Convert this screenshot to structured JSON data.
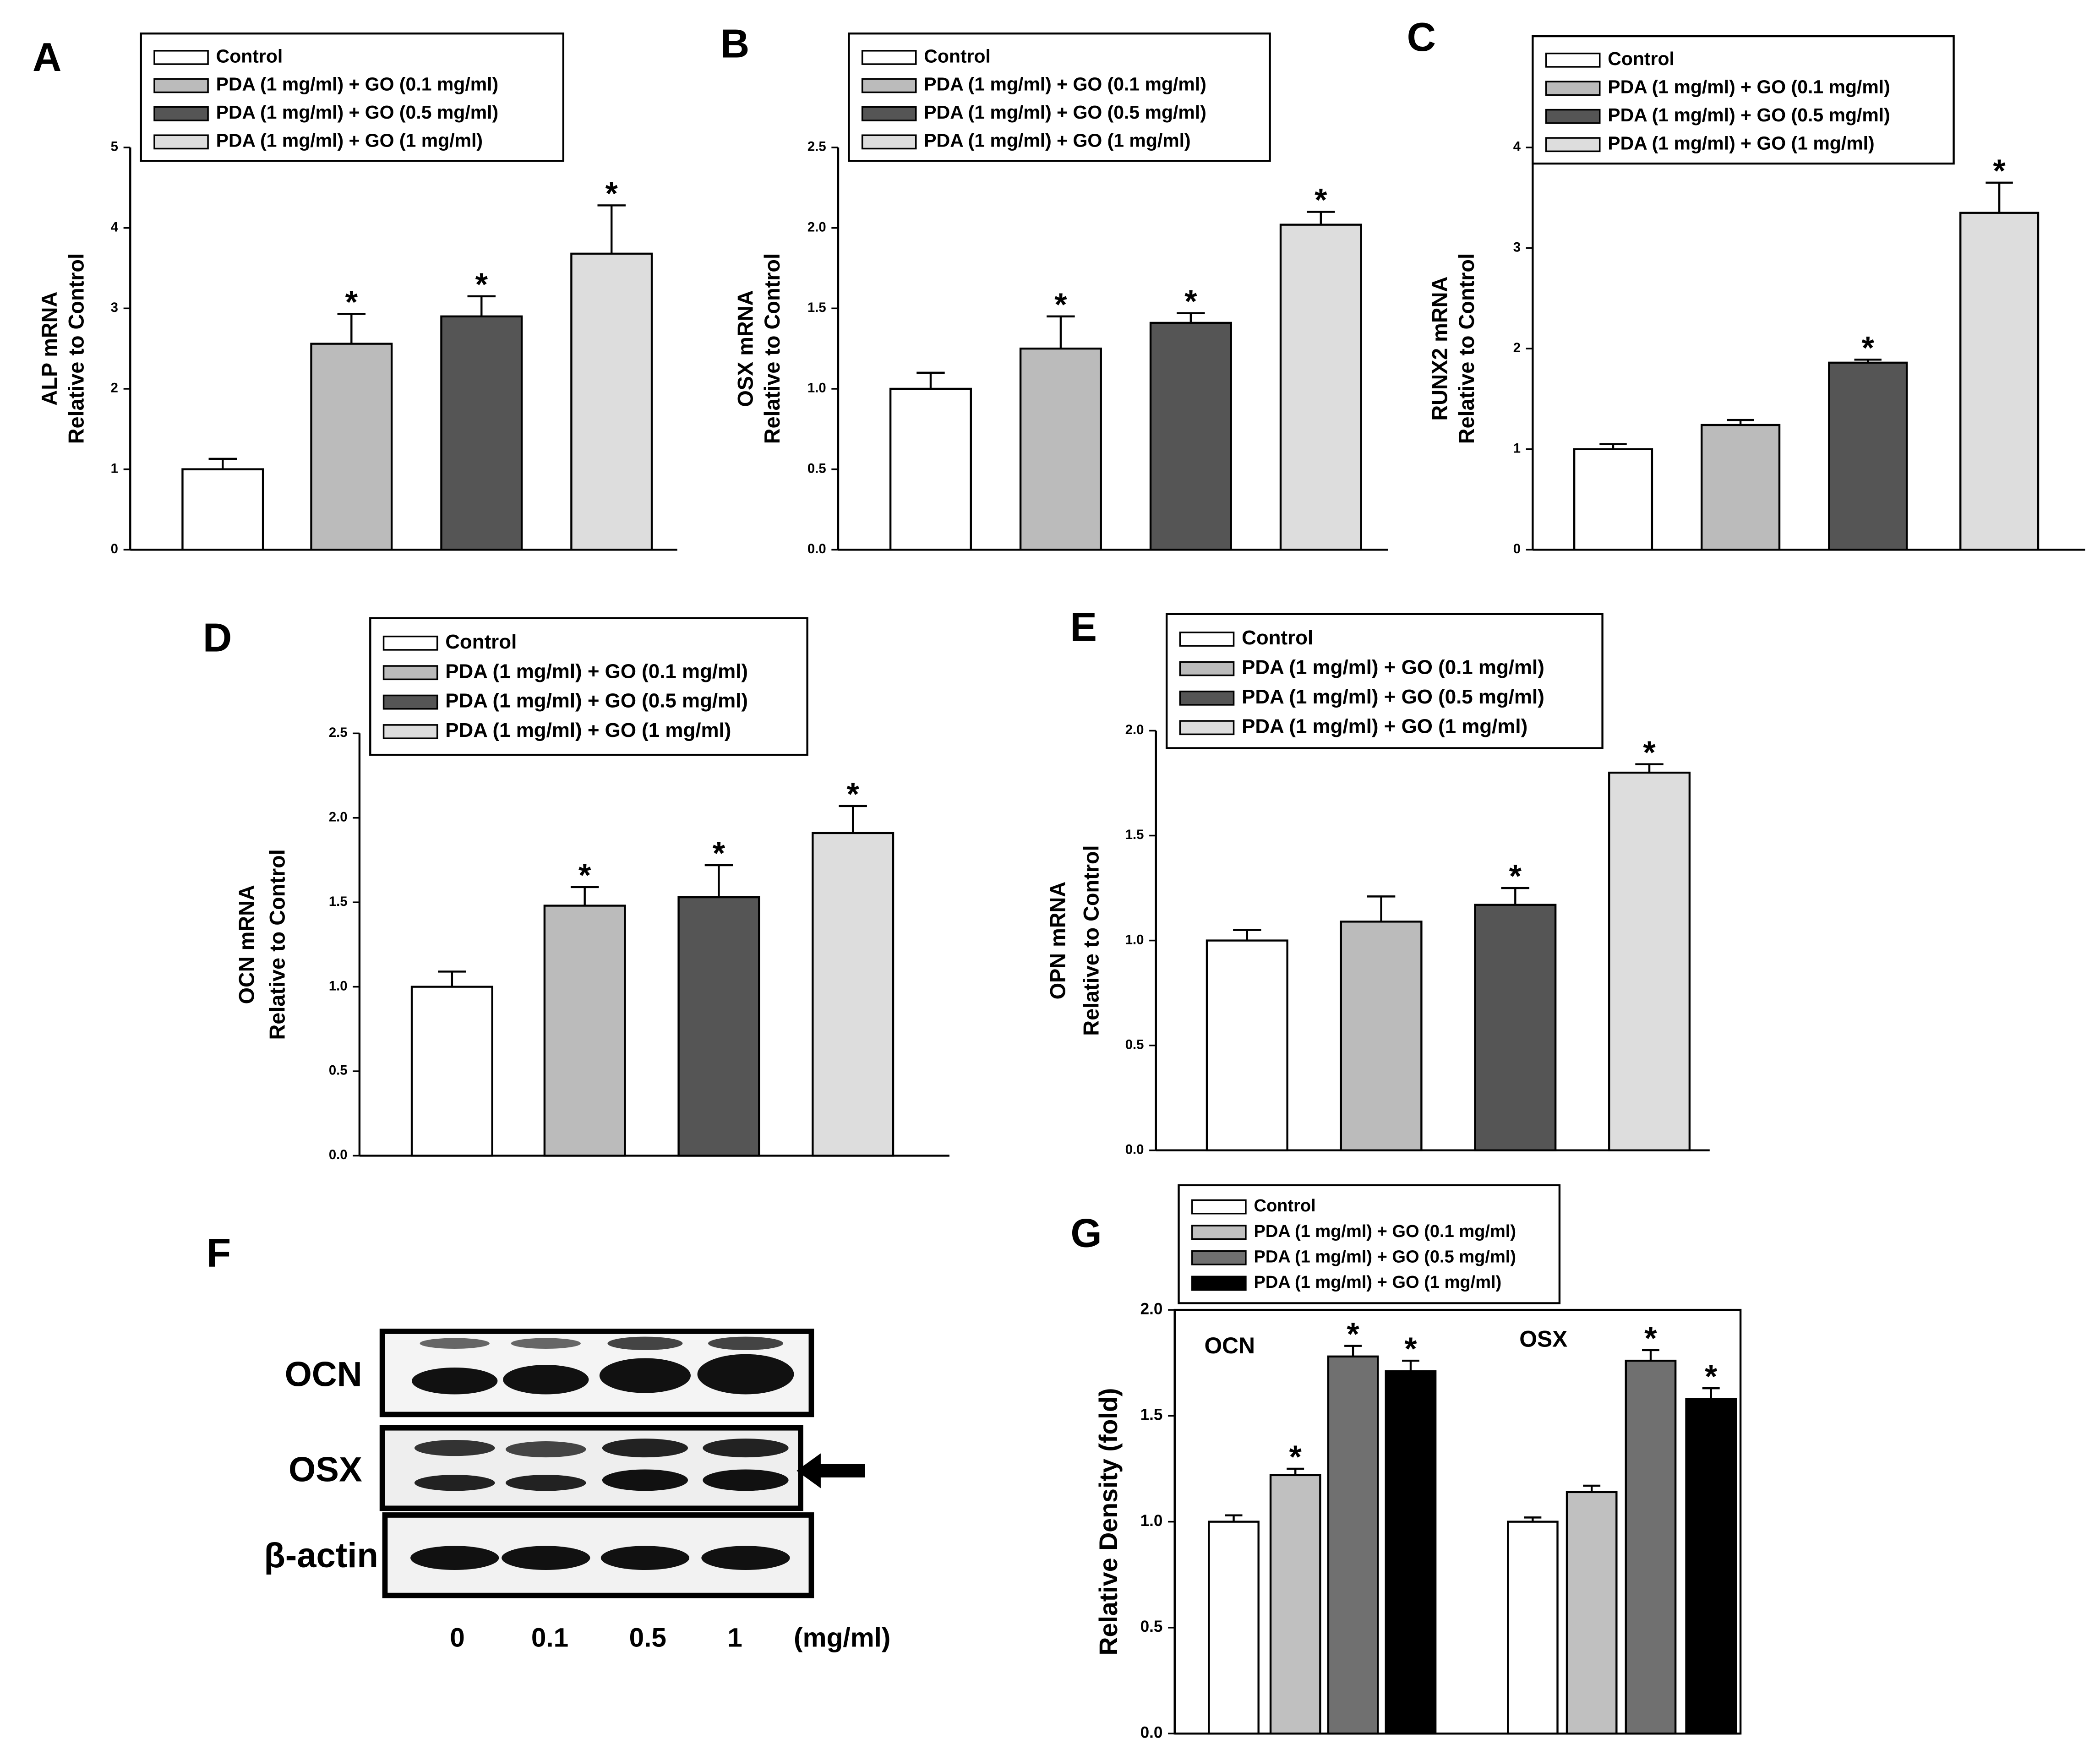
{
  "chart_data": [
    {
      "type": "bar",
      "label": "A",
      "ylabel": [
        "ALP mRNA",
        "Relative to Control"
      ],
      "categories": [
        null
      ],
      "ylim": [
        0,
        5
      ],
      "yticks": [
        0,
        1,
        2,
        3,
        4,
        5
      ],
      "series": [
        {
          "name": "Control",
          "color": "#ffffff",
          "values": [
            1.0
          ],
          "errors": [
            0.13
          ],
          "markers": [
            null
          ]
        },
        {
          "name": "PDA (1 mg/ml) + GO (0.1 mg/ml)",
          "color": "#bbbbbb",
          "values": [
            2.56
          ],
          "errors": [
            0.37
          ],
          "markers": [
            "*"
          ]
        },
        {
          "name": "PDA (1 mg/ml) + GO (0.5 mg/ml)",
          "color": "#555555",
          "values": [
            2.9
          ],
          "errors": [
            0.25
          ],
          "markers": [
            "*"
          ]
        },
        {
          "name": "PDA (1 mg/ml) + GO (1 mg/ml)",
          "color": "#dddddd",
          "values": [
            3.68
          ],
          "errors": [
            0.6
          ],
          "markers": [
            "*"
          ]
        }
      ]
    },
    {
      "type": "bar",
      "label": "B",
      "ylabel": [
        "OSX mRNA",
        "Relative to Control"
      ],
      "categories": [
        null
      ],
      "ylim": [
        0,
        2.5
      ],
      "yticks": [
        {
          "value": 0,
          "label": "0.0"
        },
        0.5,
        {
          "value": 1,
          "label": "1.0"
        },
        1.5,
        {
          "value": 2,
          "label": "2.0"
        },
        2.5
      ],
      "series": [
        {
          "name": "Control",
          "color": "#ffffff",
          "values": [
            1.0
          ],
          "errors": [
            0.1
          ],
          "markers": [
            null
          ]
        },
        {
          "name": "PDA (1 mg/ml) + GO (0.1 mg/ml)",
          "color": "#bbbbbb",
          "values": [
            1.25
          ],
          "errors": [
            0.2
          ],
          "markers": [
            "*"
          ]
        },
        {
          "name": "PDA (1 mg/ml) + GO (0.5 mg/ml)",
          "color": "#555555",
          "values": [
            1.41
          ],
          "errors": [
            0.06
          ],
          "markers": [
            "*"
          ]
        },
        {
          "name": "PDA (1 mg/ml) + GO (1 mg/ml)",
          "color": "#dddddd",
          "values": [
            2.02
          ],
          "errors": [
            0.08
          ],
          "markers": [
            "*"
          ]
        }
      ]
    },
    {
      "type": "bar",
      "label": "C",
      "ylabel": [
        "RUNX2 mRNA",
        "Relative to Control"
      ],
      "categories": [
        null
      ],
      "ylim": [
        0,
        4
      ],
      "yticks": [
        0,
        1,
        2,
        3,
        4
      ],
      "series": [
        {
          "name": "Control",
          "color": "#ffffff",
          "values": [
            1.0
          ],
          "errors": [
            0.05
          ],
          "markers": [
            null
          ]
        },
        {
          "name": "PDA (1 mg/ml) + GO (0.1 mg/ml)",
          "color": "#bbbbbb",
          "values": [
            1.24
          ],
          "errors": [
            0.05
          ],
          "markers": [
            null
          ]
        },
        {
          "name": "PDA (1 mg/ml) + GO (0.5 mg/ml)",
          "color": "#555555",
          "values": [
            1.86
          ],
          "errors": [
            0.03
          ],
          "markers": [
            "*"
          ]
        },
        {
          "name": "PDA (1 mg/ml) + GO (1 mg/ml)",
          "color": "#dddddd",
          "values": [
            3.35
          ],
          "errors": [
            0.3
          ],
          "markers": [
            "*"
          ]
        }
      ]
    },
    {
      "type": "bar",
      "label": "D",
      "ylabel": [
        "OCN mRNA",
        "Relative to Control"
      ],
      "categories": [
        null
      ],
      "ylim": [
        0,
        2.5
      ],
      "yticks": [
        {
          "value": 0,
          "label": "0.0"
        },
        0.5,
        {
          "value": 1,
          "label": "1.0"
        },
        1.5,
        {
          "value": 2,
          "label": "2.0"
        },
        2.5
      ],
      "series": [
        {
          "name": "Control",
          "color": "#ffffff",
          "values": [
            1.0
          ],
          "errors": [
            0.09
          ],
          "markers": [
            null
          ]
        },
        {
          "name": "PDA (1 mg/ml) + GO (0.1 mg/ml)",
          "color": "#bbbbbb",
          "values": [
            1.48
          ],
          "errors": [
            0.11
          ],
          "markers": [
            "*"
          ]
        },
        {
          "name": "PDA (1 mg/ml) + GO (0.5 mg/ml)",
          "color": "#555555",
          "values": [
            1.53
          ],
          "errors": [
            0.19
          ],
          "markers": [
            "*"
          ]
        },
        {
          "name": "PDA (1 mg/ml) + GO (1 mg/ml)",
          "color": "#dddddd",
          "values": [
            1.91
          ],
          "errors": [
            0.16
          ],
          "markers": [
            "*"
          ]
        }
      ]
    },
    {
      "type": "bar",
      "label": "E",
      "ylabel": [
        "OPN mRNA",
        "Relative to Control"
      ],
      "categories": [
        null
      ],
      "ylim": [
        0,
        2
      ],
      "yticks": [
        {
          "value": 0,
          "label": "0.0"
        },
        0.5,
        {
          "value": 1,
          "label": "1.0"
        },
        1.5,
        {
          "value": 2,
          "label": "2.0"
        }
      ],
      "series": [
        {
          "name": "Control",
          "color": "#ffffff",
          "values": [
            1.0
          ],
          "errors": [
            0.05
          ],
          "markers": [
            null
          ]
        },
        {
          "name": "PDA (1 mg/ml) + GO (0.1 mg/ml)",
          "color": "#bbbbbb",
          "values": [
            1.09
          ],
          "errors": [
            0.12
          ],
          "markers": [
            null
          ]
        },
        {
          "name": "PDA (1 mg/ml) + GO (0.5 mg/ml)",
          "color": "#555555",
          "values": [
            1.17
          ],
          "errors": [
            0.08
          ],
          "markers": [
            "*"
          ]
        },
        {
          "name": "PDA (1 mg/ml) + GO (1 mg/ml)",
          "color": "#dddddd",
          "values": [
            1.8
          ],
          "errors": [
            0.04
          ],
          "markers": [
            "*"
          ]
        }
      ]
    },
    {
      "type": "bar",
      "label": "G",
      "ylabel": [
        "Relative Density (fold)"
      ],
      "categories": [
        "OCN",
        "OSX"
      ],
      "ylim": [
        0,
        2
      ],
      "yticks": [
        {
          "value": 0,
          "label": "0.0"
        },
        0.5,
        {
          "value": 1,
          "label": "1.0"
        },
        1.5,
        {
          "value": 2,
          "label": "2.0"
        }
      ],
      "series": [
        {
          "name": "Control",
          "color": "#ffffff",
          "values": [
            1.0,
            1.0
          ],
          "errors": [
            0.03,
            0.02
          ],
          "markers": [
            null,
            null
          ]
        },
        {
          "name": "PDA (1 mg/ml) + GO (0.1 mg/ml)",
          "color": "#c0c0c0",
          "values": [
            1.22,
            1.14
          ],
          "errors": [
            0.03,
            0.03
          ],
          "markers": [
            "*",
            null
          ]
        },
        {
          "name": "PDA (1 mg/ml) + GO (0.5 mg/ml)",
          "color": "#707070",
          "values": [
            1.78,
            1.76
          ],
          "errors": [
            0.05,
            0.05
          ],
          "markers": [
            "*",
            "*"
          ]
        },
        {
          "name": "PDA (1 mg/ml) + GO (1 mg/ml)",
          "color": "#000000",
          "values": [
            1.71,
            1.58
          ],
          "errors": [
            0.05,
            0.05
          ],
          "markers": [
            "*",
            "*"
          ]
        }
      ]
    }
  ],
  "blot": {
    "label": "F",
    "rows": [
      "OCN",
      "OSX",
      "β-actin"
    ],
    "lanes": [
      "0",
      "0.1",
      "0.5",
      "1"
    ],
    "unit": "(mg/ml)"
  }
}
